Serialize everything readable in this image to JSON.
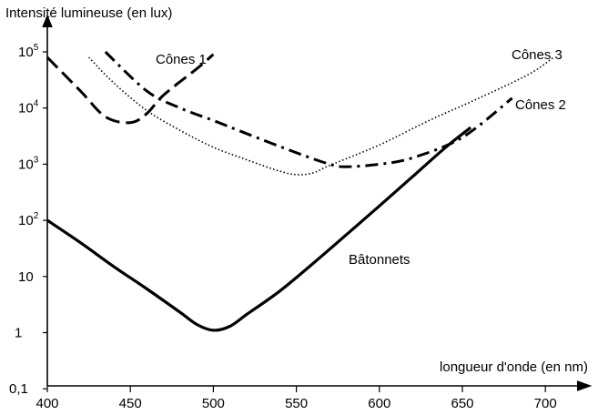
{
  "chart_data": {
    "type": "line",
    "title": "",
    "ylabel": "Intensité lumineuse (en lux)",
    "xlabel": "longueur d'onde (en nm)",
    "x_ticks": [
      {
        "value": 400,
        "label": "400"
      },
      {
        "value": 450,
        "label": "450"
      },
      {
        "value": 500,
        "label": "500"
      },
      {
        "value": 550,
        "label": "550"
      },
      {
        "value": 600,
        "label": "600"
      },
      {
        "value": 650,
        "label": "650"
      },
      {
        "value": 700,
        "label": "700"
      }
    ],
    "y_ticks": [
      {
        "value": 0.1,
        "base": "0,1",
        "exp": ""
      },
      {
        "value": 1,
        "base": "1",
        "exp": ""
      },
      {
        "value": 10,
        "base": "10",
        "exp": ""
      },
      {
        "value": 100,
        "base": "10",
        "exp": "2"
      },
      {
        "value": 1000,
        "base": "10",
        "exp": "3"
      },
      {
        "value": 10000,
        "base": "10",
        "exp": "4"
      },
      {
        "value": 100000,
        "base": "10",
        "exp": "5"
      }
    ],
    "xlim": [
      400,
      730
    ],
    "ylim": [
      0.1,
      500000
    ],
    "y_scale": "log",
    "grid": false,
    "series": [
      {
        "name": "Bâtonnets",
        "style": "solid",
        "points": [
          [
            400,
            100
          ],
          [
            420,
            40
          ],
          [
            440,
            15
          ],
          [
            460,
            6
          ],
          [
            480,
            2.3
          ],
          [
            490,
            1.4
          ],
          [
            500,
            1.1
          ],
          [
            510,
            1.3
          ],
          [
            520,
            2.1
          ],
          [
            540,
            5.5
          ],
          [
            560,
            17
          ],
          [
            580,
            55
          ],
          [
            600,
            180
          ],
          [
            620,
            600
          ],
          [
            640,
            2000
          ],
          [
            655,
            4500
          ]
        ]
      },
      {
        "name": "Cônes 1",
        "style": "dash",
        "points": [
          [
            400,
            80000
          ],
          [
            420,
            20000
          ],
          [
            435,
            7000
          ],
          [
            450,
            5500
          ],
          [
            460,
            8000
          ],
          [
            470,
            17000
          ],
          [
            490,
            50000
          ],
          [
            500,
            90000
          ]
        ]
      },
      {
        "name": "Cônes 2",
        "style": "dashdot",
        "points": [
          [
            435,
            100000
          ],
          [
            460,
            20000
          ],
          [
            480,
            10000
          ],
          [
            500,
            6000
          ],
          [
            520,
            3500
          ],
          [
            550,
            1600
          ],
          [
            570,
            1000
          ],
          [
            580,
            900
          ],
          [
            600,
            1000
          ],
          [
            620,
            1300
          ],
          [
            650,
            3000
          ],
          [
            680,
            15000
          ]
        ]
      },
      {
        "name": "Cônes 3",
        "style": "dotted",
        "points": [
          [
            425,
            80000
          ],
          [
            440,
            28000
          ],
          [
            460,
            9000
          ],
          [
            480,
            4000
          ],
          [
            500,
            2000
          ],
          [
            520,
            1200
          ],
          [
            540,
            750
          ],
          [
            550,
            650
          ],
          [
            560,
            700
          ],
          [
            570,
            950
          ],
          [
            600,
            2200
          ],
          [
            630,
            6000
          ],
          [
            660,
            15000
          ],
          [
            690,
            40000
          ],
          [
            705,
            80000
          ]
        ]
      }
    ],
    "annotations": [
      {
        "text": "Cônes 1",
        "series": "Cônes 1"
      },
      {
        "text": "Cônes 2",
        "series": "Cônes 2"
      },
      {
        "text": "Cônes 3",
        "series": "Cônes 3"
      },
      {
        "text": "Bâtonnets",
        "series": "Bâtonnets"
      }
    ]
  }
}
